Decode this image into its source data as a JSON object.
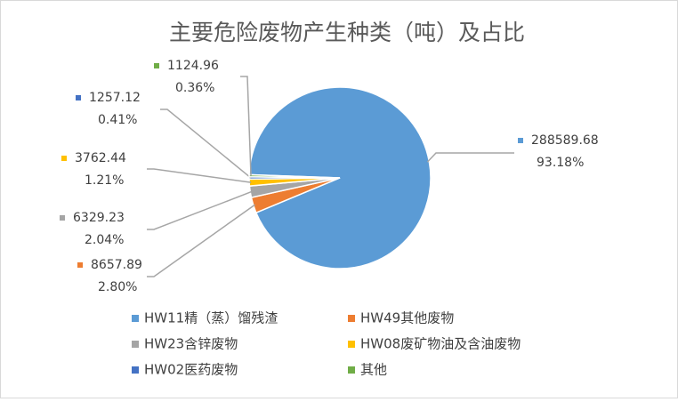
{
  "chart_data": {
    "type": "pie",
    "title": "主要危险废物产生种类（吨）及占比",
    "categories": [
      "HW11精（蒸）馏残渣",
      "HW49其他废物",
      "HW23含锌废物",
      "HW08废矿物油及含油废物",
      "HW02医药废物",
      "其他"
    ],
    "values": [
      288589.68,
      8657.89,
      6329.23,
      3762.44,
      1257.12,
      1124.96
    ],
    "percent_labels": [
      "93.18%",
      "2.80%",
      "2.04%",
      "1.21%",
      "0.41%",
      "0.36%"
    ],
    "colors": [
      "#5b9bd5",
      "#ed7d31",
      "#a5a5a5",
      "#ffc000",
      "#4472c4",
      "#70ad47"
    ],
    "legend": "bottom"
  }
}
